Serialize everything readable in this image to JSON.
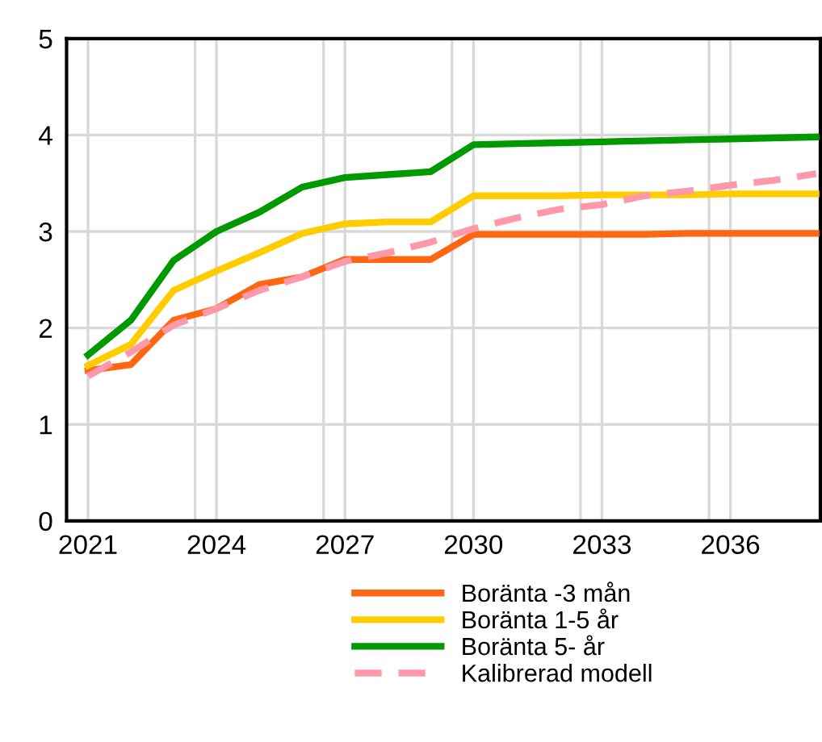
{
  "chart_data": {
    "type": "line",
    "x": [
      2021,
      2022,
      2023,
      2024,
      2025,
      2026,
      2027,
      2028,
      2029,
      2030,
      2031,
      2032,
      2033,
      2034,
      2035,
      2036,
      2037,
      2038
    ],
    "series": [
      {
        "name": "Boränta -3 mån",
        "color": "#ff6611",
        "values": [
          1.56,
          1.62,
          2.08,
          2.2,
          2.45,
          2.53,
          2.71,
          2.71,
          2.71,
          2.97,
          2.97,
          2.97,
          2.97,
          2.97,
          2.98,
          2.98,
          2.98,
          2.98
        ]
      },
      {
        "name": "Boränta 1-5 år",
        "color": "#ffcc00",
        "values": [
          1.61,
          1.83,
          2.39,
          2.59,
          2.78,
          2.98,
          3.08,
          3.1,
          3.1,
          3.37,
          3.37,
          3.37,
          3.38,
          3.38,
          3.38,
          3.39,
          3.39,
          3.39
        ]
      },
      {
        "name": "Boränta 5- år",
        "color": "#009900",
        "values": [
          1.72,
          2.08,
          2.7,
          3.0,
          3.2,
          3.46,
          3.56,
          3.59,
          3.62,
          3.9,
          3.91,
          3.92,
          3.93,
          3.94,
          3.95,
          3.96,
          3.97,
          3.98
        ]
      },
      {
        "name": "Kalibrerad modell",
        "color": "#ff99aa",
        "line_style": "dashed",
        "values": [
          1.5,
          1.75,
          2.03,
          2.2,
          2.39,
          2.53,
          2.69,
          2.78,
          2.89,
          3.03,
          3.14,
          3.23,
          3.28,
          3.37,
          3.42,
          3.48,
          3.53,
          3.6
        ]
      }
    ],
    "xlim": [
      2020.5,
      2038.1
    ],
    "xticks": [
      2021,
      2024,
      2027,
      2030,
      2033,
      2036,
      {
        "value": 2023.5,
        "label": null
      },
      {
        "value": 2026.5,
        "label": null
      },
      {
        "value": 2029.5,
        "label": null
      },
      {
        "value": 2032.5,
        "label": null
      },
      {
        "value": 2035.5,
        "label": null
      }
    ],
    "ylim": [
      0,
      5
    ],
    "yticks": [
      0,
      1,
      2,
      3,
      4,
      5
    ],
    "grid": true,
    "legend": "bottom",
    "line_style": "solid",
    "marker": "none"
  }
}
